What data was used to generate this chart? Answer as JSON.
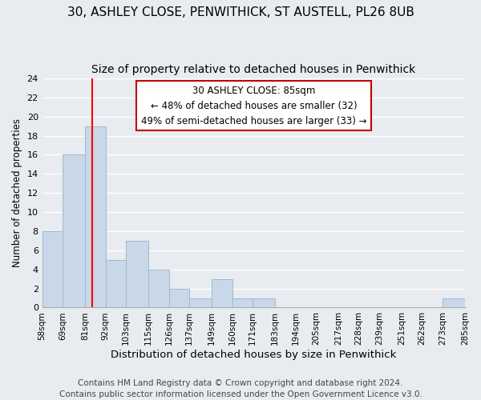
{
  "title1": "30, ASHLEY CLOSE, PENWITHICK, ST AUSTELL, PL26 8UB",
  "title2": "Size of property relative to detached houses in Penwithick",
  "xlabel": "Distribution of detached houses by size in Penwithick",
  "ylabel": "Number of detached properties",
  "bin_edges": [
    58,
    69,
    81,
    92,
    103,
    115,
    126,
    137,
    149,
    160,
    171,
    183,
    194,
    205,
    217,
    228,
    239,
    251,
    262,
    273,
    285
  ],
  "bin_labels": [
    "58sqm",
    "69sqm",
    "81sqm",
    "92sqm",
    "103sqm",
    "115sqm",
    "126sqm",
    "137sqm",
    "149sqm",
    "160sqm",
    "171sqm",
    "183sqm",
    "194sqm",
    "205sqm",
    "217sqm",
    "228sqm",
    "239sqm",
    "251sqm",
    "262sqm",
    "273sqm",
    "285sqm"
  ],
  "counts": [
    8,
    16,
    19,
    5,
    7,
    4,
    2,
    1,
    3,
    1,
    1,
    0,
    0,
    0,
    0,
    0,
    0,
    0,
    0,
    1
  ],
  "bar_color": "#c8d8e8",
  "bar_edgecolor": "#a0b8cc",
  "redline_x": 85,
  "ylim": [
    0,
    24
  ],
  "yticks": [
    0,
    2,
    4,
    6,
    8,
    10,
    12,
    14,
    16,
    18,
    20,
    22,
    24
  ],
  "annotation_title": "30 ASHLEY CLOSE: 85sqm",
  "annotation_line1": "← 48% of detached houses are smaller (32)",
  "annotation_line2": "49% of semi-detached houses are larger (33) →",
  "annotation_box_color": "#ffffff",
  "annotation_box_edgecolor": "#c00000",
  "footer1": "Contains HM Land Registry data © Crown copyright and database right 2024.",
  "footer2": "Contains public sector information licensed under the Open Government Licence v3.0.",
  "background_color": "#e8ecf0",
  "grid_color": "#ffffff",
  "title1_fontsize": 11,
  "title2_fontsize": 10,
  "xlabel_fontsize": 9.5,
  "ylabel_fontsize": 8.5,
  "footer_fontsize": 7.5,
  "tick_fontsize": 7.5,
  "ytick_fontsize": 8
}
